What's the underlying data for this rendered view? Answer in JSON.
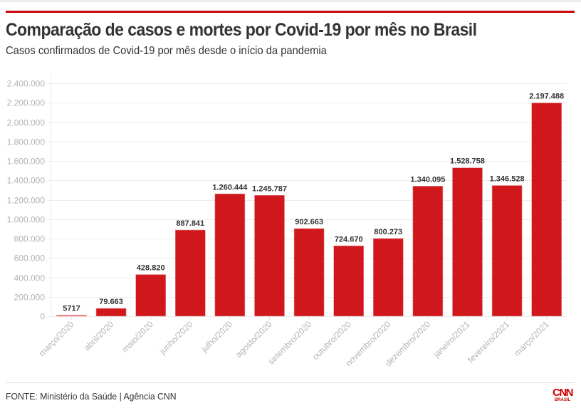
{
  "header": {
    "title": "Comparação de casos e mortes por Covid-19 por mês no Brasil",
    "subtitle": "Casos confirmados de Covid-19 por mês desde o início da pandemia"
  },
  "footer": {
    "source": "FONTE: Ministério da Saúde | Agência CNN",
    "logo_main": "CNN",
    "logo_sub": "BRASIL"
  },
  "colors": {
    "bar": "#d0181c",
    "accent_rule": "#c8080c",
    "gridline": "#ececec"
  },
  "chart_data": {
    "type": "bar",
    "title": "Comparação de casos e mortes por Covid-19 por mês no Brasil",
    "subtitle": "Casos confirmados de Covid-19 por mês desde o início da pandemia",
    "xlabel": "",
    "ylabel": "",
    "ylim": [
      0,
      2400000
    ],
    "grid": true,
    "legend": "none",
    "categories": [
      "março/2020",
      "abril/2020",
      "maio/2020",
      "junho/2020",
      "julho/2020",
      "agosto/2020",
      "setembro/2020",
      "outubro/2020",
      "novembro/2020",
      "dezembro/2020",
      "janeiro/2021",
      "fevereiro/2021",
      "março/2021"
    ],
    "values": [
      5717,
      79663,
      428820,
      887841,
      1260444,
      1245787,
      902663,
      724670,
      800273,
      1340095,
      1528758,
      1346528,
      2197488
    ],
    "data_labels": [
      "5717",
      "79.663",
      "428.820",
      "887.841",
      "1.260.444",
      "1.245.787",
      "902.663",
      "724.670",
      "800.273",
      "1.340.095",
      "1.528.758",
      "1.346.528",
      "2.197.488"
    ],
    "yticks": [
      0,
      200000,
      400000,
      600000,
      800000,
      1000000,
      1200000,
      1400000,
      1600000,
      1800000,
      2000000,
      2200000,
      2400000
    ],
    "ytick_labels": [
      "0",
      "200.000",
      "400.000",
      "600.000",
      "800.000",
      "1.000.000",
      "1.200.000",
      "1.400.000",
      "1.600.000",
      "1.800.000",
      "2.000.000",
      "2.200.000",
      "2.400.000"
    ]
  }
}
